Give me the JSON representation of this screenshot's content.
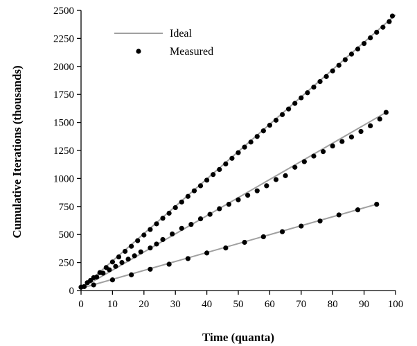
{
  "chart_data": {
    "type": "scatter",
    "xlabel": "Time (quanta)",
    "ylabel": "Cumulative Iterations (thousands)",
    "xlim": [
      0,
      100
    ],
    "ylim": [
      0,
      2500
    ],
    "xticks": [
      0,
      10,
      20,
      30,
      40,
      50,
      60,
      70,
      80,
      90,
      100
    ],
    "yticks": [
      0,
      250,
      500,
      750,
      1000,
      1250,
      1500,
      1750,
      2000,
      2250,
      2500
    ],
    "grid": false,
    "legend_position": "top-left",
    "legend": [
      {
        "label": "Ideal",
        "marker": "line",
        "color": "#a0a0a0"
      },
      {
        "label": "Measured",
        "marker": "dot",
        "color": "#000000"
      }
    ],
    "series": [
      {
        "ideal": [
          [
            0,
            20
          ],
          [
            100,
            2460
          ]
        ],
        "measured": [
          [
            0,
            30
          ],
          [
            2,
            70
          ],
          [
            4,
            115
          ],
          [
            6,
            160
          ],
          [
            8,
            205
          ],
          [
            10,
            255
          ],
          [
            12,
            300
          ],
          [
            14,
            350
          ],
          [
            16,
            395
          ],
          [
            18,
            445
          ],
          [
            20,
            495
          ],
          [
            22,
            545
          ],
          [
            24,
            595
          ],
          [
            26,
            645
          ],
          [
            28,
            690
          ],
          [
            30,
            740
          ],
          [
            32,
            790
          ],
          [
            34,
            840
          ],
          [
            36,
            890
          ],
          [
            38,
            935
          ],
          [
            40,
            985
          ],
          [
            42,
            1035
          ],
          [
            44,
            1080
          ],
          [
            46,
            1130
          ],
          [
            48,
            1180
          ],
          [
            50,
            1230
          ],
          [
            52,
            1280
          ],
          [
            54,
            1325
          ],
          [
            56,
            1375
          ],
          [
            58,
            1425
          ],
          [
            60,
            1475
          ],
          [
            62,
            1520
          ],
          [
            64,
            1570
          ],
          [
            66,
            1620
          ],
          [
            68,
            1670
          ],
          [
            70,
            1720
          ],
          [
            72,
            1765
          ],
          [
            74,
            1815
          ],
          [
            76,
            1865
          ],
          [
            78,
            1910
          ],
          [
            80,
            1960
          ],
          [
            82,
            2010
          ],
          [
            84,
            2060
          ],
          [
            86,
            2110
          ],
          [
            88,
            2155
          ],
          [
            90,
            2205
          ],
          [
            92,
            2255
          ],
          [
            94,
            2305
          ],
          [
            96,
            2350
          ],
          [
            98,
            2400
          ],
          [
            99,
            2450
          ]
        ]
      },
      {
        "ideal": [
          [
            0,
            20
          ],
          [
            97,
            1590
          ]
        ],
        "measured": [
          [
            1,
            35
          ],
          [
            3,
            90
          ],
          [
            5,
            120
          ],
          [
            7,
            155
          ],
          [
            9,
            185
          ],
          [
            11,
            215
          ],
          [
            13,
            250
          ],
          [
            15,
            280
          ],
          [
            17,
            310
          ],
          [
            19,
            345
          ],
          [
            22,
            380
          ],
          [
            24,
            415
          ],
          [
            26,
            455
          ],
          [
            29,
            505
          ],
          [
            32,
            555
          ],
          [
            35,
            590
          ],
          [
            38,
            640
          ],
          [
            41,
            680
          ],
          [
            44,
            730
          ],
          [
            47,
            770
          ],
          [
            50,
            810
          ],
          [
            53,
            850
          ],
          [
            56,
            890
          ],
          [
            59,
            935
          ],
          [
            62,
            990
          ],
          [
            65,
            1025
          ],
          [
            68,
            1100
          ],
          [
            71,
            1150
          ],
          [
            74,
            1200
          ],
          [
            77,
            1240
          ],
          [
            80,
            1290
          ],
          [
            83,
            1330
          ],
          [
            86,
            1370
          ],
          [
            89,
            1420
          ],
          [
            92,
            1470
          ],
          [
            95,
            1530
          ],
          [
            97,
            1590
          ]
        ]
      },
      {
        "ideal": [
          [
            0,
            20
          ],
          [
            94,
            770
          ]
        ],
        "measured": [
          [
            4,
            50
          ],
          [
            10,
            95
          ],
          [
            16,
            140
          ],
          [
            22,
            190
          ],
          [
            28,
            235
          ],
          [
            34,
            285
          ],
          [
            40,
            335
          ],
          [
            46,
            380
          ],
          [
            52,
            430
          ],
          [
            58,
            480
          ],
          [
            64,
            525
          ],
          [
            70,
            575
          ],
          [
            76,
            620
          ],
          [
            82,
            675
          ],
          [
            88,
            720
          ],
          [
            94,
            770
          ]
        ]
      }
    ]
  }
}
